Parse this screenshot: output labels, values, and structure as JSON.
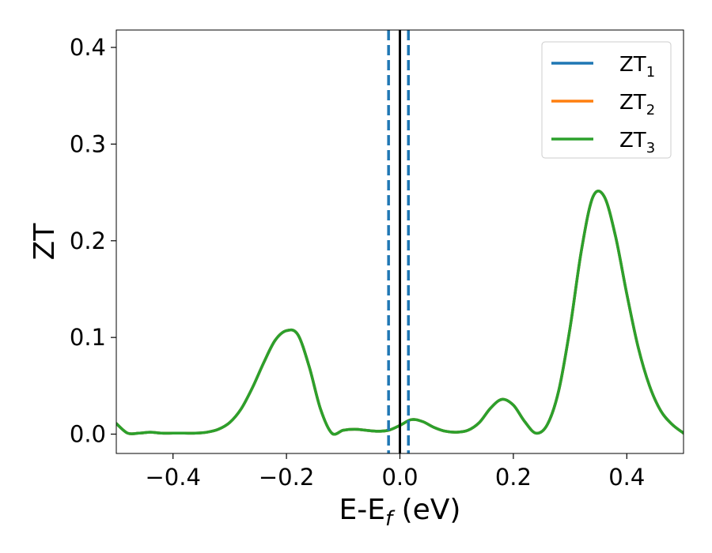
{
  "chart_data": {
    "type": "line",
    "title": "",
    "xlabel": "E-E",
    "xlabel_sub": "f",
    "xlabel_unit": " (eV)",
    "ylabel": "ZT",
    "xlim": [
      -0.5,
      0.5
    ],
    "ylim": [
      -0.02,
      0.418
    ],
    "xticks": [
      -0.4,
      -0.2,
      0.0,
      0.2,
      0.4
    ],
    "xtick_labels": [
      "−0.4",
      "−0.2",
      "0.0",
      "0.2",
      "0.4"
    ],
    "yticks": [
      0.0,
      0.1,
      0.2,
      0.3,
      0.4
    ],
    "ytick_labels": [
      "0.0",
      "0.1",
      "0.2",
      "0.3",
      "0.4"
    ],
    "grid": false,
    "legend_position": "top-right",
    "vertical_lines": [
      {
        "x": -0.02,
        "style": "dashed",
        "color": "#1f77b4"
      },
      {
        "x": 0.0,
        "style": "solid",
        "color": "#000000"
      },
      {
        "x": 0.015,
        "style": "dashed",
        "color": "#1f77b4"
      }
    ],
    "x": [
      -0.5,
      -0.48,
      -0.46,
      -0.44,
      -0.42,
      -0.4,
      -0.38,
      -0.36,
      -0.34,
      -0.32,
      -0.3,
      -0.28,
      -0.26,
      -0.24,
      -0.22,
      -0.2,
      -0.18,
      -0.16,
      -0.14,
      -0.12,
      -0.1,
      -0.08,
      -0.06,
      -0.04,
      -0.02,
      0.0,
      0.02,
      0.04,
      0.06,
      0.08,
      0.1,
      0.12,
      0.14,
      0.16,
      0.18,
      0.2,
      0.22,
      0.24,
      0.26,
      0.28,
      0.3,
      0.32,
      0.34,
      0.36,
      0.38,
      0.4,
      0.42,
      0.44,
      0.46,
      0.48,
      0.5
    ],
    "series": [
      {
        "name": "ZT",
        "name_sub": "1",
        "color": "#1f77b4",
        "values": [
          0.011,
          0.001,
          0.001,
          0.002,
          0.001,
          0.001,
          0.001,
          0.001,
          0.002,
          0.005,
          0.012,
          0.026,
          0.048,
          0.074,
          0.097,
          0.107,
          0.103,
          0.07,
          0.026,
          0.001,
          0.004,
          0.005,
          0.004,
          0.003,
          0.004,
          0.009,
          0.015,
          0.013,
          0.007,
          0.003,
          0.002,
          0.004,
          0.012,
          0.027,
          0.036,
          0.03,
          0.013,
          0.001,
          0.01,
          0.045,
          0.11,
          0.19,
          0.245,
          0.246,
          0.205,
          0.145,
          0.09,
          0.05,
          0.024,
          0.01,
          0.001
        ]
      },
      {
        "name": "ZT",
        "name_sub": "2",
        "color": "#ff7f0e",
        "values": [
          0.011,
          0.001,
          0.001,
          0.002,
          0.001,
          0.001,
          0.001,
          0.001,
          0.002,
          0.005,
          0.012,
          0.026,
          0.048,
          0.074,
          0.097,
          0.107,
          0.103,
          0.07,
          0.026,
          0.001,
          0.004,
          0.005,
          0.004,
          0.003,
          0.004,
          0.009,
          0.015,
          0.013,
          0.007,
          0.003,
          0.002,
          0.004,
          0.012,
          0.027,
          0.036,
          0.03,
          0.013,
          0.001,
          0.01,
          0.045,
          0.11,
          0.19,
          0.245,
          0.246,
          0.205,
          0.145,
          0.09,
          0.05,
          0.024,
          0.01,
          0.001
        ]
      },
      {
        "name": "ZT",
        "name_sub": "3",
        "color": "#2ca02c",
        "values": [
          0.011,
          0.001,
          0.001,
          0.002,
          0.001,
          0.001,
          0.001,
          0.001,
          0.002,
          0.005,
          0.012,
          0.026,
          0.048,
          0.074,
          0.097,
          0.107,
          0.103,
          0.07,
          0.026,
          0.001,
          0.004,
          0.005,
          0.004,
          0.003,
          0.004,
          0.009,
          0.015,
          0.013,
          0.007,
          0.003,
          0.002,
          0.004,
          0.012,
          0.027,
          0.036,
          0.03,
          0.013,
          0.001,
          0.01,
          0.045,
          0.11,
          0.19,
          0.245,
          0.246,
          0.205,
          0.145,
          0.09,
          0.05,
          0.024,
          0.01,
          0.001
        ]
      }
    ]
  }
}
